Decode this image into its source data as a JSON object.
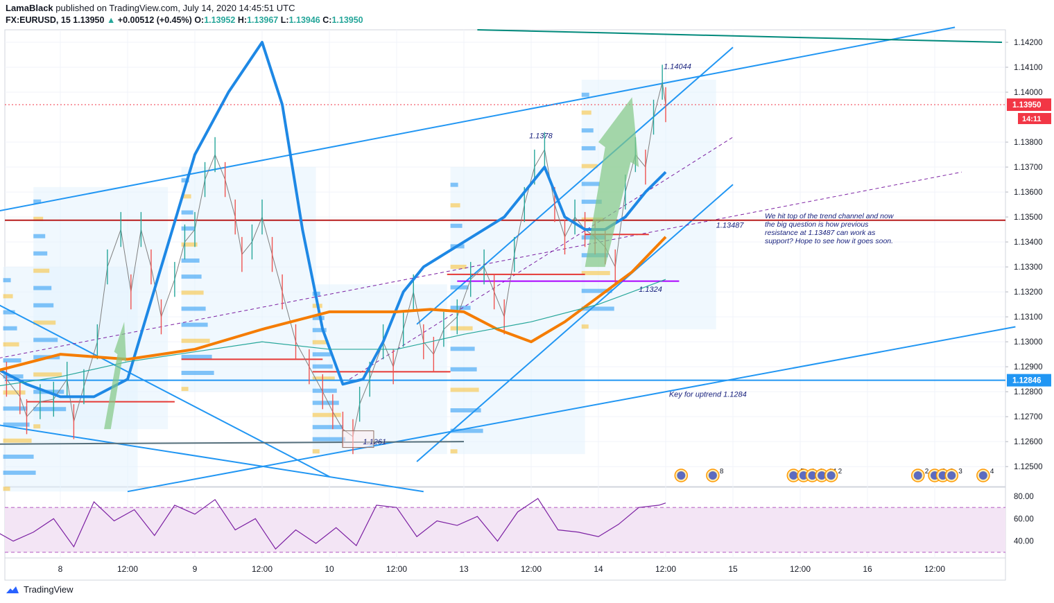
{
  "header": {
    "author": "LamaBlack",
    "published_text": "published on TradingView.com, July 14, 2020 14:45:51 UTC",
    "symbol": "FX:EURUSD, 15",
    "last": "1.13950",
    "change_icon": "triangle-up-icon",
    "change": "+0.00512 (+0.45%)",
    "open_label": "O:",
    "open": "1.13952",
    "high_label": "H:",
    "high": "1.13967",
    "low_label": "L:",
    "low": "1.13946",
    "close_label": "C:",
    "close": "1.13950"
  },
  "footer": {
    "brand": "TradingView",
    "logo_icon": "tradingview-logo-icon"
  },
  "colors": {
    "up": "#26a69a",
    "down": "#ef5350",
    "blue": "#2196f3",
    "ema_blue": "#1e88e5",
    "orange": "#f57c00",
    "red_line": "#b71c1c",
    "teal": "#00897b",
    "purple": "#7b1fa2",
    "rsi_fill": "#f3e5f5",
    "price_tag": "#f23645",
    "vp_blue": "#2196f3",
    "vp_yellow": "#fbc02d"
  },
  "chart_data": {
    "type": "line",
    "symbol": "EURUSD",
    "timeframe": "15",
    "ylim": [
      1.1242,
      1.1425
    ],
    "y_ticks": [
      "1.12500",
      "1.12600",
      "1.12700",
      "1.12800",
      "1.12900",
      "1.13000",
      "1.13100",
      "1.13200",
      "1.13300",
      "1.13400",
      "1.13500",
      "1.13600",
      "1.13700",
      "1.13800",
      "1.14000",
      "1.14100",
      "1.14200"
    ],
    "x_ticks": [
      "8",
      "12:00",
      "9",
      "12:00",
      "10",
      "12:00",
      "13",
      "12:00",
      "14",
      "12:00",
      "15",
      "12:00",
      "16",
      "12:00"
    ],
    "price_path": [
      [
        0,
        1.129
      ],
      [
        0.2,
        1.1285
      ],
      [
        0.4,
        1.1278
      ],
      [
        0.5,
        1.127
      ],
      [
        0.7,
        1.1276
      ],
      [
        0.9,
        1.1277
      ],
      [
        1.1,
        1.1285
      ],
      [
        1.2,
        1.1268
      ],
      [
        1.35,
        1.1282
      ],
      [
        1.55,
        1.13
      ],
      [
        1.7,
        1.133
      ],
      [
        1.9,
        1.1345
      ],
      [
        2.05,
        1.132
      ],
      [
        2.2,
        1.1345
      ],
      [
        2.35,
        1.133
      ],
      [
        2.5,
        1.131
      ],
      [
        2.7,
        1.1325
      ],
      [
        2.85,
        1.134
      ],
      [
        3.0,
        1.1345
      ],
      [
        3.15,
        1.1365
      ],
      [
        3.3,
        1.1375
      ],
      [
        3.45,
        1.1365
      ],
      [
        3.6,
        1.135
      ],
      [
        3.7,
        1.1335
      ],
      [
        3.85,
        1.134
      ],
      [
        4.0,
        1.135
      ],
      [
        4.15,
        1.1335
      ],
      [
        4.3,
        1.132
      ],
      [
        4.5,
        1.13
      ],
      [
        4.7,
        1.129
      ],
      [
        4.9,
        1.128
      ],
      [
        5.05,
        1.1272
      ],
      [
        5.2,
        1.1265
      ],
      [
        5.35,
        1.1262
      ],
      [
        5.45,
        1.1275
      ],
      [
        5.6,
        1.1285
      ],
      [
        5.8,
        1.13
      ],
      [
        5.95,
        1.129
      ],
      [
        6.1,
        1.1305
      ],
      [
        6.25,
        1.132
      ],
      [
        6.4,
        1.13
      ],
      [
        6.55,
        1.1295
      ],
      [
        6.7,
        1.1305
      ],
      [
        6.9,
        1.131
      ],
      [
        7.1,
        1.1325
      ],
      [
        7.3,
        1.133
      ],
      [
        7.45,
        1.132
      ],
      [
        7.6,
        1.131
      ],
      [
        7.75,
        1.1335
      ],
      [
        7.9,
        1.1355
      ],
      [
        8.05,
        1.137
      ],
      [
        8.2,
        1.1377
      ],
      [
        8.35,
        1.1355
      ],
      [
        8.5,
        1.1342
      ],
      [
        8.65,
        1.135
      ],
      [
        8.8,
        1.1345
      ],
      [
        8.95,
        1.1342
      ],
      [
        9.1,
        1.1338
      ],
      [
        9.25,
        1.133
      ],
      [
        9.4,
        1.136
      ],
      [
        9.55,
        1.1375
      ],
      [
        9.7,
        1.137
      ],
      [
        9.82,
        1.139
      ],
      [
        9.95,
        1.1404
      ],
      [
        10.0,
        1.1395
      ]
    ],
    "series": [
      {
        "name": "",
        "color": "#1e88e5",
        "x": [
          0,
          0.5,
          1.0,
          1.5,
          2.0,
          2.5,
          3.0,
          3.5,
          4.0,
          4.3,
          4.6,
          4.9,
          5.2,
          5.5,
          5.8,
          6.1,
          6.4,
          6.7,
          7.0,
          7.3,
          7.6,
          7.9,
          8.2,
          8.5,
          8.8,
          9.1,
          9.4,
          9.7,
          10.0
        ],
        "values": [
          1.129,
          1.1283,
          1.1278,
          1.1278,
          1.1285,
          1.133,
          1.1375,
          1.14,
          1.142,
          1.1395,
          1.1345,
          1.1305,
          1.1283,
          1.1285,
          1.13,
          1.132,
          1.133,
          1.1335,
          1.134,
          1.1345,
          1.135,
          1.136,
          1.137,
          1.135,
          1.1345,
          1.1345,
          1.135,
          1.136,
          1.1368
        ]
      },
      {
        "name": "",
        "color": "#f57c00",
        "x": [
          0,
          1,
          2,
          3,
          4,
          5,
          6,
          6.5,
          7,
          7.5,
          8,
          8.5,
          9,
          9.5,
          10
        ],
        "values": [
          1.1288,
          1.1295,
          1.1293,
          1.1297,
          1.1305,
          1.1312,
          1.1312,
          1.1313,
          1.1312,
          1.1305,
          1.13,
          1.1308,
          1.1318,
          1.1328,
          1.1342
        ]
      },
      {
        "name": "",
        "color": "#26a69a",
        "x": [
          0,
          1,
          2,
          3,
          4,
          5,
          6,
          7,
          8,
          9,
          10
        ],
        "values": [
          1.1282,
          1.1286,
          1.1292,
          1.1296,
          1.13,
          1.1297,
          1.1297,
          1.1303,
          1.1308,
          1.1315,
          1.1325
        ]
      }
    ],
    "horizontal_levels": [
      {
        "value": 1.13487,
        "color": "#b71c1c",
        "label": "1.13487"
      },
      {
        "value": 1.12846,
        "color": "#2196f3",
        "label": "1.12846"
      },
      {
        "value": 1.1395,
        "color": "#f23645",
        "label": "1.13950",
        "dotted": true
      }
    ],
    "annotations": {
      "peak_label": "1.14044",
      "high_label": "1.1378",
      "support_label": "1.13487",
      "low_label": "1.1324",
      "bottom_label": "1.1261",
      "key_text": "Key for uptrend 1.1284",
      "note_lines": [
        "We hit top of the trend channel and now",
        "the big question is how previous",
        "resistance at 1.13487 can work as",
        "support? Hope to see how it goes soon."
      ],
      "countdown": "14:11"
    },
    "events": [
      {
        "x": 10.23,
        "count": ""
      },
      {
        "x": 10.7,
        "count": "8"
      },
      {
        "x": 11.9,
        "count": "5"
      },
      {
        "x": 12.05,
        "count": "4"
      },
      {
        "x": 12.18,
        "count": "1"
      },
      {
        "x": 12.32,
        "count": "14"
      },
      {
        "x": 12.46,
        "count": "2"
      },
      {
        "x": 13.75,
        "count": "2"
      },
      {
        "x": 14.0,
        "count": "2"
      },
      {
        "x": 14.12,
        "count": "3"
      },
      {
        "x": 14.25,
        "count": "3"
      },
      {
        "x": 14.72,
        "count": "4"
      }
    ],
    "rsi": {
      "ylim": [
        25,
        88
      ],
      "ticks": [
        "80.00",
        "60.00",
        "40.00"
      ],
      "band": [
        30,
        70
      ],
      "x": [
        0,
        0.3,
        0.6,
        0.9,
        1.2,
        1.5,
        1.8,
        2.1,
        2.4,
        2.7,
        3.0,
        3.3,
        3.6,
        3.9,
        4.2,
        4.5,
        4.8,
        5.1,
        5.4,
        5.7,
        6.0,
        6.3,
        6.6,
        6.9,
        7.2,
        7.5,
        7.8,
        8.1,
        8.4,
        8.7,
        9.0,
        9.3,
        9.6,
        9.9,
        10.0
      ],
      "values": [
        50,
        40,
        48,
        60,
        35,
        75,
        58,
        68,
        45,
        72,
        64,
        77,
        50,
        60,
        33,
        50,
        38,
        52,
        36,
        72,
        70,
        44,
        58,
        54,
        62,
        40,
        66,
        78,
        50,
        48,
        44,
        55,
        70,
        72,
        74
      ]
    }
  }
}
